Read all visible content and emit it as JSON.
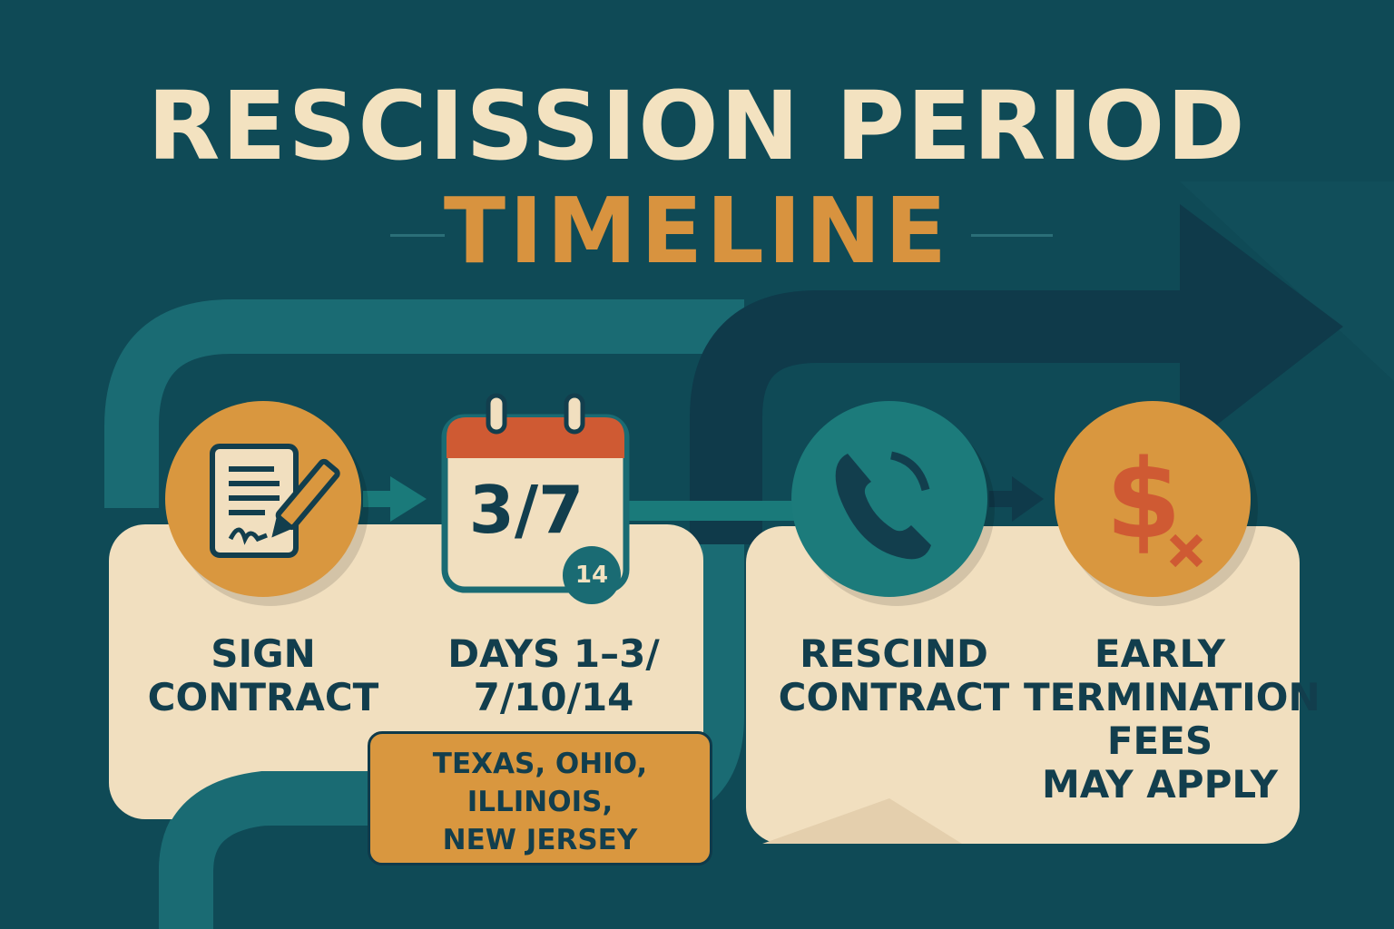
{
  "title": {
    "line1": "RESCISSION PERIOD",
    "line2": "TIMELINE"
  },
  "colors": {
    "background": "#0f4a56",
    "cream": "#f1dfbf",
    "orange": "#d9973f",
    "text": "#123e4d",
    "red": "#cf5a33",
    "teal": "#1c7b7b"
  },
  "steps": [
    {
      "icon": "contract-sign-icon",
      "label_lines": [
        "SIGN",
        "CONTRACT"
      ]
    },
    {
      "icon": "calendar-icon",
      "calendar_text": "3/7",
      "badge": "14",
      "label_lines": [
        "DAYS 1–3/",
        "7/10/14"
      ]
    },
    {
      "icon": "phone-icon",
      "label_lines": [
        "RESCIND",
        "CONTRACT"
      ]
    },
    {
      "icon": "dollar-cancel-icon",
      "label_lines": [
        "EARLY",
        "TERMINATION",
        "FEES",
        "MAY APPLY"
      ]
    }
  ],
  "states_note": {
    "lines": [
      "TEXAS, OHIO,",
      "ILLINOIS,",
      "NEW JERSEY"
    ]
  }
}
